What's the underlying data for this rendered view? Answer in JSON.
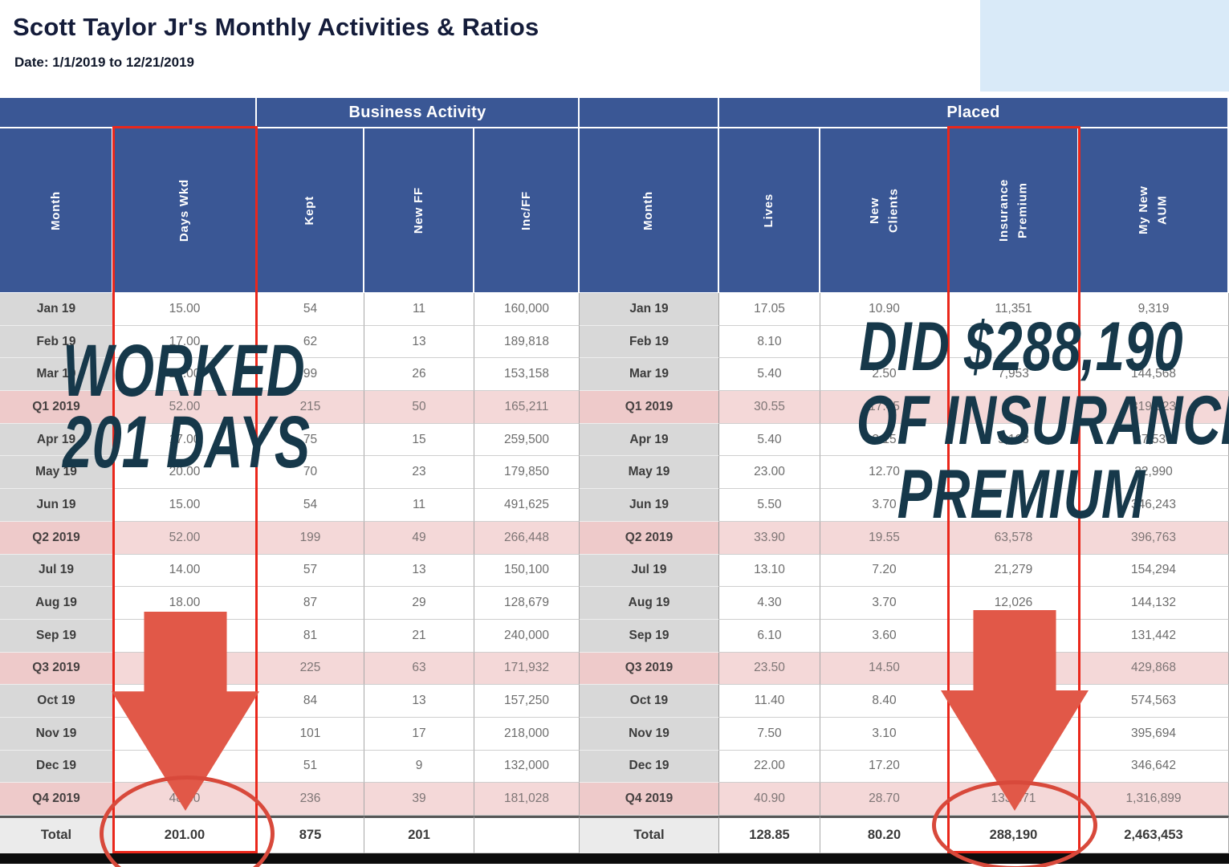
{
  "title": "Scott Taylor Jr's Monthly Activities & Ratios",
  "date_line": "Date: 1/1/2019 to 12/21/2019",
  "left_table": {
    "group_header": "Business Activity",
    "columns": [
      "Month",
      "Days Wkd",
      "Kept",
      "New FF",
      "Inc/FF"
    ]
  },
  "right_table": {
    "group_header": "Placed",
    "columns": [
      "Month",
      "Lives",
      "New Clients",
      "Insurance Premium",
      "My New AUM"
    ]
  },
  "rows": [
    {
      "type": "month",
      "left": [
        "Jan 19",
        "15.00",
        "54",
        "11",
        "160,000"
      ],
      "right": [
        "Jan 19",
        "17.05",
        "10.90",
        "11,351",
        "9,319"
      ]
    },
    {
      "type": "month",
      "left": [
        "Feb 19",
        "17.00",
        "62",
        "13",
        "189,818"
      ],
      "right": [
        "Feb 19",
        "8.10",
        "",
        "",
        ""
      ]
    },
    {
      "type": "month",
      "left": [
        "Mar 19",
        "20.00",
        "99",
        "26",
        "153,158"
      ],
      "right": [
        "Mar 19",
        "5.40",
        "2.50",
        "7,953",
        "144,568"
      ]
    },
    {
      "type": "quarter",
      "left": [
        "Q1 2019",
        "52.00",
        "215",
        "50",
        "165,211"
      ],
      "right": [
        "Q1 2019",
        "30.55",
        "17.45",
        "",
        "319,923"
      ]
    },
    {
      "type": "month",
      "left": [
        "Apr 19",
        "17.00",
        "75",
        "15",
        "259,500"
      ],
      "right": [
        "Apr 19",
        "5.40",
        "3.15",
        "5,103",
        "27,530"
      ]
    },
    {
      "type": "month",
      "left": [
        "May 19",
        "20.00",
        "70",
        "23",
        "179,850"
      ],
      "right": [
        "May 19",
        "23.00",
        "12.70",
        "",
        "22,990"
      ]
    },
    {
      "type": "month",
      "left": [
        "Jun 19",
        "15.00",
        "54",
        "11",
        "491,625"
      ],
      "right": [
        "Jun 19",
        "5.50",
        "3.70",
        "",
        "346,243"
      ]
    },
    {
      "type": "quarter",
      "left": [
        "Q2 2019",
        "52.00",
        "199",
        "49",
        "266,448"
      ],
      "right": [
        "Q2 2019",
        "33.90",
        "19.55",
        "63,578",
        "396,763"
      ]
    },
    {
      "type": "month",
      "left": [
        "Jul 19",
        "14.00",
        "57",
        "13",
        "150,100"
      ],
      "right": [
        "Jul 19",
        "13.10",
        "7.20",
        "21,279",
        "154,294"
      ]
    },
    {
      "type": "month",
      "left": [
        "Aug 19",
        "18.00",
        "87",
        "29",
        "128,679"
      ],
      "right": [
        "Aug 19",
        "4.30",
        "3.70",
        "12,026",
        "144,132"
      ]
    },
    {
      "type": "month",
      "left": [
        "Sep 19",
        "",
        "81",
        "21",
        "240,000"
      ],
      "right": [
        "Sep 19",
        "6.10",
        "3.60",
        "",
        "131,442"
      ]
    },
    {
      "type": "quarter",
      "left": [
        "Q3 2019",
        "",
        "225",
        "63",
        "171,932"
      ],
      "right": [
        "Q3 2019",
        "23.50",
        "14.50",
        "",
        "429,868"
      ]
    },
    {
      "type": "month",
      "left": [
        "Oct 19",
        "",
        "84",
        "13",
        "157,250"
      ],
      "right": [
        "Oct 19",
        "11.40",
        "8.40",
        "",
        "574,563"
      ]
    },
    {
      "type": "month",
      "left": [
        "Nov 19",
        "",
        "101",
        "17",
        "218,000"
      ],
      "right": [
        "Nov 19",
        "7.50",
        "3.10",
        "",
        "395,694"
      ]
    },
    {
      "type": "month",
      "left": [
        "Dec 19",
        "",
        "51",
        "9",
        "132,000"
      ],
      "right": [
        "Dec 19",
        "22.00",
        "17.20",
        "",
        "346,642"
      ]
    },
    {
      "type": "quarter",
      "left": [
        "Q4 2019",
        "48.00",
        "236",
        "39",
        "181,028"
      ],
      "right": [
        "Q4 2019",
        "40.90",
        "28.70",
        "133,371",
        "1,316,899"
      ]
    },
    {
      "type": "total",
      "left": [
        "Total",
        "201.00",
        "875",
        "201",
        ""
      ],
      "right": [
        "Total",
        "128.85",
        "80.20",
        "288,190",
        "2,463,453"
      ]
    }
  ],
  "annotations": {
    "worked_overlay": {
      "line1": "WORKED",
      "line2": "201 DAYS"
    },
    "premium_overlay": {
      "line1": "DID $288,190",
      "line2": "OF INSURANCE",
      "line3": "PREMIUM"
    },
    "highlight_box_color": "#ea271b",
    "arrow_color": "#e15848",
    "circle_color": "#d8493b",
    "overlay_text_color": "#16384a"
  },
  "colors": {
    "header_blue": "#3a5795",
    "month_label_gray": "#d8d8d8",
    "quarter_row_pink": "#f4d8d8",
    "corner_light_blue": "#d9eaf8"
  }
}
